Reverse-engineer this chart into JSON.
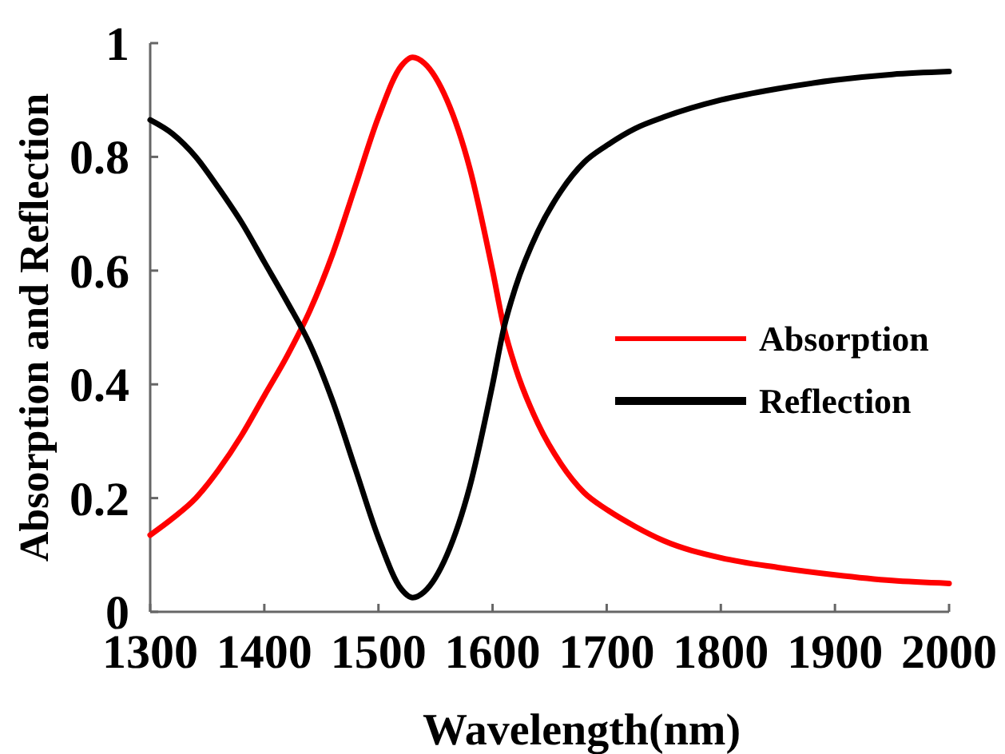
{
  "chart_data": {
    "type": "line",
    "xlabel": "Wavelength(nm)",
    "ylabel": "Absorption and Reflection",
    "xlim": [
      1300,
      2000
    ],
    "xticks": [
      1300,
      1400,
      1500,
      1600,
      1700,
      1800,
      1900,
      2000
    ],
    "ylim": [
      0,
      1
    ],
    "yticks": [
      0,
      0.2,
      0.4,
      0.6,
      0.8,
      1
    ],
    "legend": "right",
    "grid": false,
    "marker": "none",
    "line_style": "solid",
    "x": [
      1300,
      1320,
      1340,
      1360,
      1380,
      1400,
      1420,
      1440,
      1460,
      1480,
      1500,
      1520,
      1530,
      1540,
      1560,
      1580,
      1600,
      1610,
      1620,
      1640,
      1660,
      1680,
      1700,
      1725,
      1750,
      1800,
      1850,
      1900,
      1950,
      2000
    ],
    "series": [
      {
        "name": "Absorption",
        "color": "#ff0000",
        "values": [
          0.135,
          0.165,
          0.2,
          0.25,
          0.31,
          0.38,
          0.45,
          0.53,
          0.63,
          0.75,
          0.87,
          0.96,
          0.975,
          0.965,
          0.9,
          0.78,
          0.6,
          0.5,
          0.43,
          0.33,
          0.26,
          0.21,
          0.18,
          0.15,
          0.125,
          0.095,
          0.078,
          0.065,
          0.055,
          0.05
        ]
      },
      {
        "name": "Reflection",
        "color": "#000000",
        "values": [
          0.865,
          0.84,
          0.8,
          0.745,
          0.685,
          0.615,
          0.545,
          0.47,
          0.37,
          0.25,
          0.13,
          0.04,
          0.025,
          0.035,
          0.1,
          0.22,
          0.4,
          0.5,
          0.57,
          0.67,
          0.74,
          0.79,
          0.82,
          0.85,
          0.87,
          0.9,
          0.92,
          0.935,
          0.945,
          0.95
        ]
      }
    ]
  }
}
